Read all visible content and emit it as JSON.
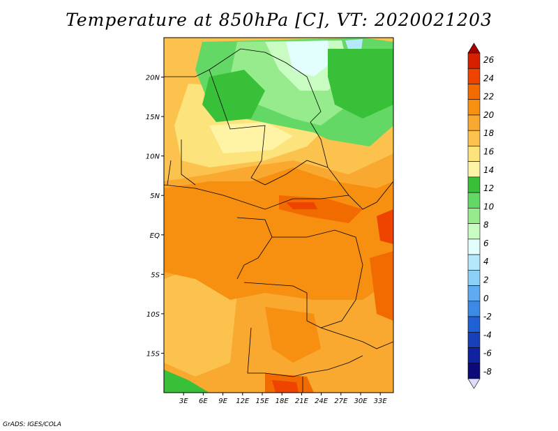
{
  "title": "Temperature at 850hPa [C], VT: 2020021203",
  "credit": "GrADS: IGES/COLA",
  "map": {
    "lon_range_deg": [
      0,
      35
    ],
    "lat_range_deg": [
      -20,
      25
    ],
    "lon_ticks": [
      "3E",
      "6E",
      "9E",
      "12E",
      "15E",
      "18E",
      "21E",
      "24E",
      "27E",
      "30E",
      "33E"
    ],
    "lat_ticks": [
      "20N",
      "15N",
      "10N",
      "5N",
      "EQ",
      "5S",
      "10S",
      "15S"
    ],
    "region": "Central Africa"
  },
  "colorbar": {
    "units": "C",
    "levels": [
      "26",
      "24",
      "22",
      "20",
      "18",
      "16",
      "14",
      "12",
      "10",
      "8",
      "6",
      "4",
      "2",
      "0",
      "-2",
      "-4",
      "-6",
      "-8"
    ],
    "colors": [
      "#a50000",
      "#d72000",
      "#ee4400",
      "#f26b00",
      "#f78f10",
      "#f9a830",
      "#fcc24e",
      "#fde37c",
      "#fff4a6",
      "#38c138",
      "#64d864",
      "#96eb8c",
      "#c8fcc2",
      "#e2fffd",
      "#b4e8fb",
      "#8cd0f5",
      "#5faaf0",
      "#3c8ae6",
      "#1f61d4",
      "#163fb8",
      "#0f22a0",
      "#0c0a78",
      "#ddddfb"
    ]
  }
}
